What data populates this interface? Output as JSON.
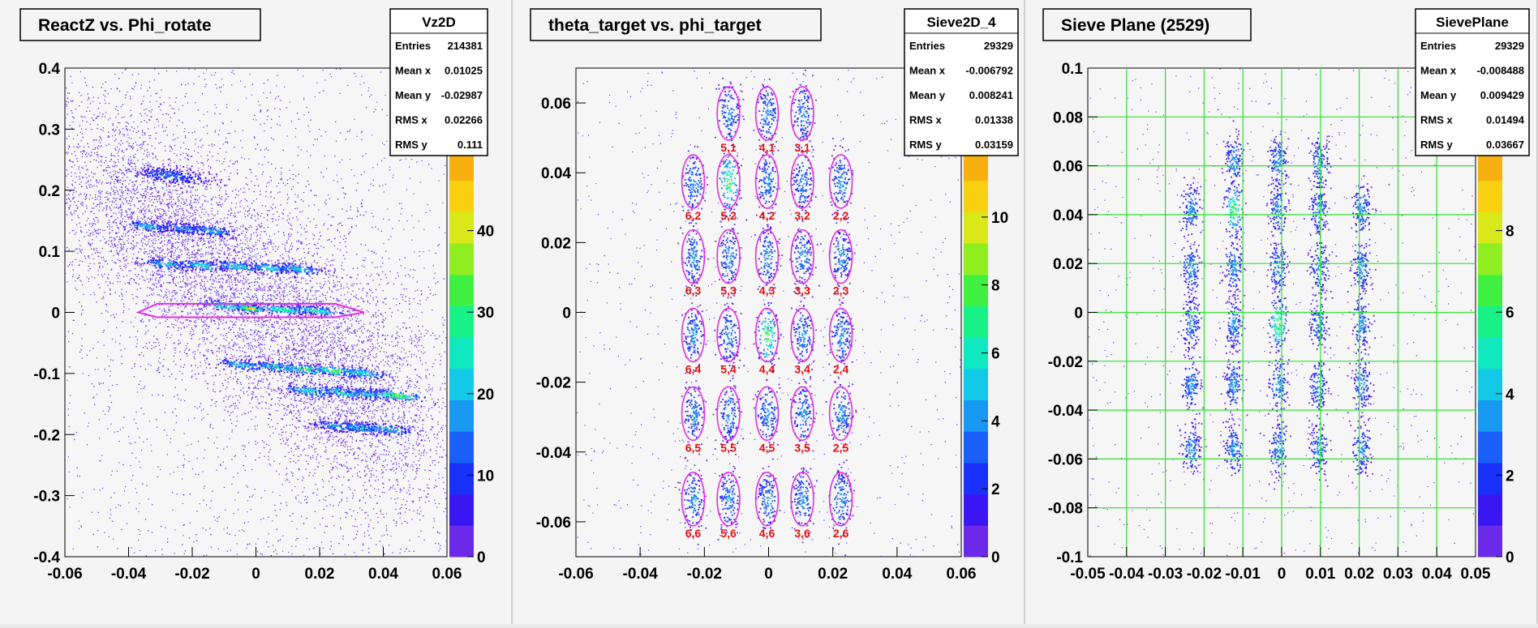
{
  "chart_data": [
    {
      "type": "heatmap",
      "title": "ReactZ vs. Phi_rotate",
      "stats": {
        "name": "Vz2D",
        "rows": [
          {
            "label": "Entries",
            "value": "214381"
          },
          {
            "label": "Mean x",
            "value": "0.01025"
          },
          {
            "label": "Mean y",
            "value": "-0.02987"
          },
          {
            "label": "RMS x",
            "value": "0.02266"
          },
          {
            "label": "RMS y",
            "value": "0.111"
          }
        ]
      },
      "xlim": [
        -0.06,
        0.06
      ],
      "ylim": [
        -0.4,
        0.4
      ],
      "x_ticks": [
        "-0.06",
        "-0.04",
        "-0.02",
        "0",
        "0.02",
        "0.04",
        "0.06"
      ],
      "y_ticks": [
        "-0.4",
        "-0.3",
        "-0.2",
        "-0.1",
        "0",
        "0.1",
        "0.2",
        "0.3",
        "0.4"
      ],
      "z_ticks": [
        "0",
        "10",
        "20",
        "30",
        "40"
      ],
      "z_max": 50,
      "clusters": [
        {
          "x": -0.027,
          "y": 0.225,
          "w": 0.012,
          "h": 0.018,
          "peak": 0.3,
          "n": 220
        },
        {
          "x": -0.034,
          "y": 0.142,
          "w": 0.007,
          "h": 0.012,
          "peak": 0.45,
          "n": 110
        },
        {
          "x": -0.023,
          "y": 0.139,
          "w": 0.007,
          "h": 0.012,
          "peak": 0.45,
          "n": 110
        },
        {
          "x": -0.014,
          "y": 0.135,
          "w": 0.007,
          "h": 0.012,
          "peak": 0.45,
          "n": 110
        },
        {
          "x": -0.028,
          "y": 0.08,
          "w": 0.007,
          "h": 0.012,
          "peak": 0.5,
          "n": 110
        },
        {
          "x": -0.017,
          "y": 0.078,
          "w": 0.007,
          "h": 0.012,
          "peak": 0.55,
          "n": 110
        },
        {
          "x": -0.006,
          "y": 0.076,
          "w": 0.007,
          "h": 0.012,
          "peak": 0.55,
          "n": 110
        },
        {
          "x": 0.004,
          "y": 0.074,
          "w": 0.007,
          "h": 0.012,
          "peak": 0.55,
          "n": 110
        },
        {
          "x": 0.013,
          "y": 0.072,
          "w": 0.007,
          "h": 0.012,
          "peak": 0.5,
          "n": 110
        },
        {
          "x": -0.01,
          "y": 0.012,
          "w": 0.008,
          "h": 0.01,
          "peak": 0.6,
          "n": 120
        },
        {
          "x": -0.002,
          "y": 0.008,
          "w": 0.004,
          "h": 0.008,
          "peak": 1.0,
          "n": 120
        },
        {
          "x": 0.008,
          "y": 0.006,
          "w": 0.008,
          "h": 0.01,
          "peak": 0.65,
          "n": 120
        },
        {
          "x": 0.019,
          "y": 0.004,
          "w": 0.008,
          "h": 0.01,
          "peak": 0.6,
          "n": 120
        },
        {
          "x": -0.004,
          "y": -0.085,
          "w": 0.008,
          "h": 0.012,
          "peak": 0.5,
          "n": 110
        },
        {
          "x": 0.006,
          "y": -0.088,
          "w": 0.008,
          "h": 0.012,
          "peak": 0.55,
          "n": 110
        },
        {
          "x": 0.015,
          "y": -0.092,
          "w": 0.008,
          "h": 0.012,
          "peak": 0.7,
          "n": 110
        },
        {
          "x": 0.025,
          "y": -0.095,
          "w": 0.008,
          "h": 0.012,
          "peak": 0.75,
          "n": 110
        },
        {
          "x": 0.033,
          "y": -0.098,
          "w": 0.008,
          "h": 0.012,
          "peak": 0.55,
          "n": 110
        },
        {
          "x": 0.017,
          "y": -0.128,
          "w": 0.008,
          "h": 0.012,
          "peak": 0.55,
          "n": 110
        },
        {
          "x": 0.027,
          "y": -0.13,
          "w": 0.008,
          "h": 0.012,
          "peak": 0.6,
          "n": 110
        },
        {
          "x": 0.036,
          "y": -0.133,
          "w": 0.008,
          "h": 0.012,
          "peak": 0.55,
          "n": 110
        },
        {
          "x": 0.044,
          "y": -0.135,
          "w": 0.008,
          "h": 0.012,
          "peak": 0.75,
          "n": 110
        },
        {
          "x": 0.025,
          "y": -0.185,
          "w": 0.008,
          "h": 0.012,
          "peak": 0.4,
          "n": 110
        },
        {
          "x": 0.033,
          "y": -0.188,
          "w": 0.008,
          "h": 0.012,
          "peak": 0.55,
          "n": 110
        },
        {
          "x": 0.041,
          "y": -0.19,
          "w": 0.008,
          "h": 0.012,
          "peak": 0.5,
          "n": 110
        }
      ],
      "halos": [
        {
          "x": -0.025,
          "y": 0.11,
          "w": 0.016,
          "h": 0.08,
          "n": 1500
        },
        {
          "x": 0.005,
          "y": 0.02,
          "w": 0.03,
          "h": 0.1,
          "n": 2500
        },
        {
          "x": 0.025,
          "y": -0.12,
          "w": 0.018,
          "h": 0.09,
          "n": 2200
        },
        {
          "x": -0.045,
          "y": 0.2,
          "w": 0.015,
          "h": 0.09,
          "n": 900
        },
        {
          "x": 0.0,
          "y": 0.0,
          "w": 0.04,
          "h": 0.3,
          "n": 1200
        }
      ],
      "cut_polygon": [
        [
          -0.037,
          0.0
        ],
        [
          -0.031,
          0.014
        ],
        [
          0.025,
          0.014
        ],
        [
          0.034,
          0.0
        ],
        [
          0.025,
          -0.008
        ],
        [
          -0.031,
          -0.008
        ]
      ]
    },
    {
      "type": "heatmap",
      "title": "theta_target vs. phi_target",
      "stats": {
        "name": "Sieve2D_4",
        "rows": [
          {
            "label": "Entries",
            "value": "29329"
          },
          {
            "label": "Mean x",
            "value": "-0.006792"
          },
          {
            "label": "Mean y",
            "value": "0.008241"
          },
          {
            "label": "RMS x",
            "value": "0.01338"
          },
          {
            "label": "RMS y",
            "value": "0.03159"
          }
        ]
      },
      "xlim": [
        -0.06,
        0.06
      ],
      "ylim": [
        -0.07,
        0.07
      ],
      "x_ticks": [
        "-0.06",
        "-0.04",
        "-0.02",
        "0",
        "0.02",
        "0.04",
        "0.06"
      ],
      "y_ticks": [
        "-0.06",
        "-0.04",
        "-0.02",
        "0",
        "0.02",
        "0.04",
        "0.06"
      ],
      "z_ticks": [
        "0",
        "2",
        "4",
        "6",
        "8",
        "10"
      ],
      "z_max": 12,
      "columns": [
        -0.0235,
        -0.0125,
        -0.0005,
        0.0105,
        0.0225
      ],
      "rows_y": [
        0.057,
        0.0375,
        0.016,
        -0.0065,
        -0.029,
        -0.0535
      ],
      "hole_labels": [
        [
          "",
          "5,1",
          "4,1",
          "3,1",
          ""
        ],
        [
          "6,2",
          "5,2",
          "4,2",
          "3,2",
          "2,2"
        ],
        [
          "6,3",
          "5,3",
          "4,3",
          "3,3",
          "2,3"
        ],
        [
          "6,4",
          "5,4",
          "4,4",
          "3,4",
          "2,4"
        ],
        [
          "6,5",
          "5,5",
          "4,5",
          "3,5",
          "2,5"
        ],
        [
          "6,6",
          "5,6",
          "4,6",
          "3,6",
          "2,6"
        ]
      ]
    },
    {
      "type": "heatmap",
      "title": "Sieve Plane (2529)",
      "stats": {
        "name": "SievePlane",
        "rows": [
          {
            "label": "Entries",
            "value": "29329"
          },
          {
            "label": "Mean x",
            "value": "-0.008488"
          },
          {
            "label": "Mean y",
            "value": "0.009429"
          },
          {
            "label": "RMS x",
            "value": "0.01494"
          },
          {
            "label": "RMS y",
            "value": "0.03667"
          }
        ]
      },
      "xlim": [
        -0.05,
        0.05
      ],
      "ylim": [
        -0.1,
        0.1
      ],
      "x_ticks": [
        "-0.05",
        "-0.04",
        "-0.03",
        "-0.02",
        "-0.01",
        "0",
        "0.01",
        "0.02",
        "0.03",
        "0.04",
        "0.05"
      ],
      "y_ticks": [
        "-0.1",
        "-0.08",
        "-0.06",
        "-0.04",
        "-0.02",
        "0",
        "0.02",
        "0.04",
        "0.06",
        "0.08",
        "0.1"
      ],
      "z_ticks": [
        "0",
        "2",
        "4",
        "6",
        "8"
      ],
      "z_max": 10,
      "grid_x": [
        -0.04,
        -0.03,
        -0.02,
        -0.01,
        0.0,
        0.01,
        0.02,
        0.03,
        0.04
      ],
      "grid_y": [
        -0.08,
        -0.06,
        -0.04,
        -0.02,
        0.0,
        0.02,
        0.04,
        0.06,
        0.08
      ],
      "columns": [
        -0.0235,
        -0.0125,
        -0.001,
        0.0095,
        0.0205
      ],
      "rows_y": [
        0.0615,
        0.0425,
        0.0185,
        -0.0045,
        -0.0295,
        -0.0555
      ],
      "present": [
        [
          false,
          true,
          true,
          true,
          false
        ],
        [
          true,
          true,
          true,
          true,
          true
        ],
        [
          true,
          true,
          true,
          true,
          true
        ],
        [
          true,
          true,
          true,
          true,
          true
        ],
        [
          true,
          true,
          true,
          true,
          true
        ],
        [
          true,
          true,
          true,
          true,
          true
        ]
      ]
    }
  ]
}
